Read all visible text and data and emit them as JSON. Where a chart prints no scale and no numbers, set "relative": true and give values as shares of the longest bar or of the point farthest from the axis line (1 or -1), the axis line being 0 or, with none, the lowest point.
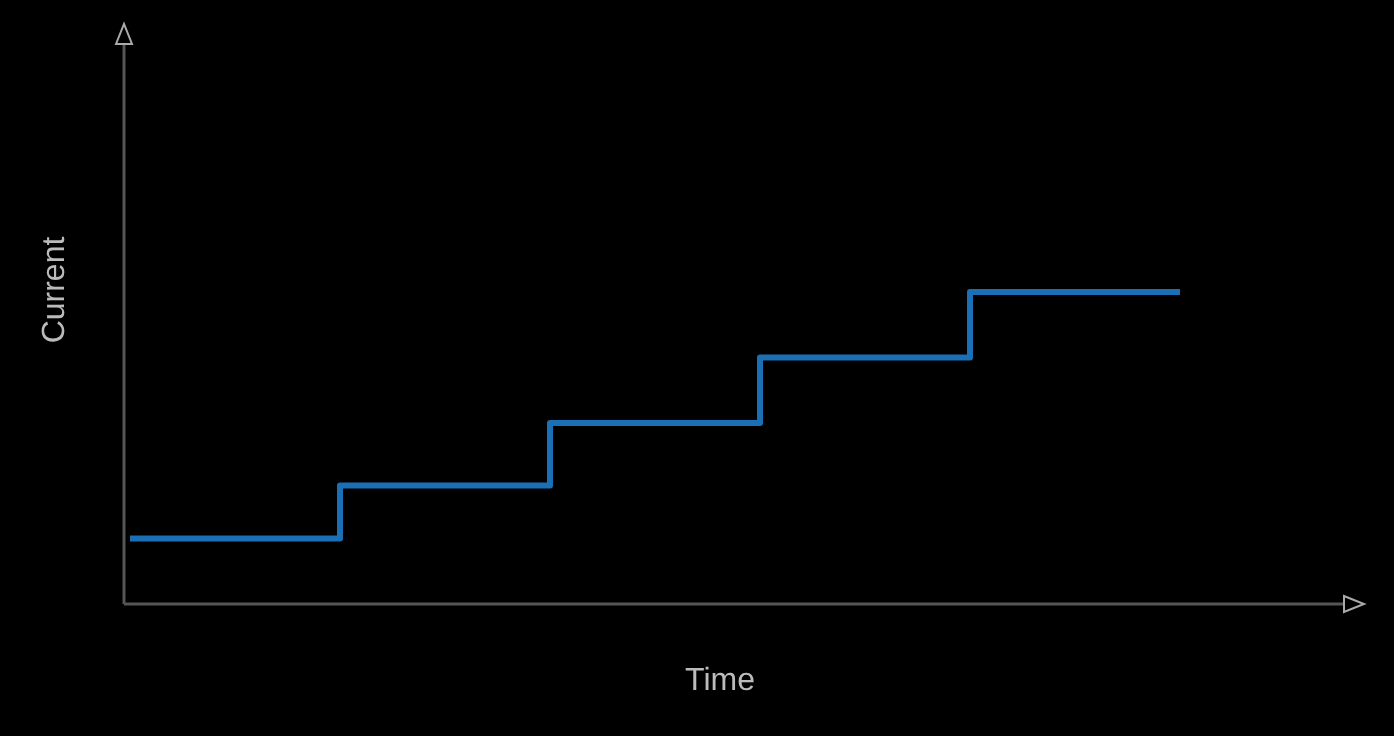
{
  "chart_data": {
    "type": "step",
    "xlabel": "Time",
    "ylabel": "Current",
    "relative": true,
    "categories": [
      null,
      null,
      null,
      null,
      null,
      null
    ],
    "series": [
      {
        "color": "#1a6fb5",
        "values": [
          0.21,
          0.38,
          0.58,
          0.79,
          1,
          1
        ]
      }
    ]
  }
}
